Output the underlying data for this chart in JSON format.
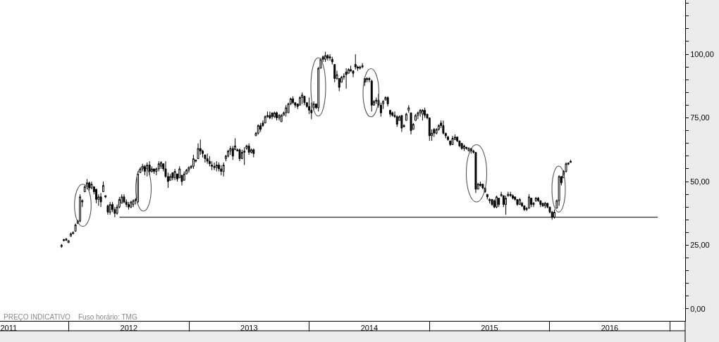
{
  "chart_data": {
    "type": "candlestick",
    "color": "#000000",
    "x": [
      2011.94,
      2011.959,
      2011.979,
      2011.998,
      2012.017,
      2012.036,
      2012.056,
      2012.075,
      2012.094,
      2012.113,
      2012.133,
      2012.152,
      2012.171,
      2012.19,
      2012.21,
      2012.229,
      2012.248,
      2012.267,
      2012.287,
      2012.306,
      2012.325,
      2012.344,
      2012.364,
      2012.383,
      2012.402,
      2012.421,
      2012.441,
      2012.46,
      2012.479,
      2012.498,
      2012.518,
      2012.537,
      2012.556,
      2012.575,
      2012.595,
      2012.614,
      2012.633,
      2012.652,
      2012.672,
      2012.691,
      2012.71,
      2012.729,
      2012.749,
      2012.768,
      2012.787,
      2012.806,
      2012.826,
      2012.845,
      2012.864,
      2012.883,
      2012.903,
      2012.922,
      2012.941,
      2012.96,
      2012.98,
      2012.999,
      2013.018,
      2013.037,
      2013.057,
      2013.076,
      2013.095,
      2013.114,
      2013.134,
      2013.153,
      2013.172,
      2013.191,
      2013.211,
      2013.23,
      2013.249,
      2013.268,
      2013.288,
      2013.307,
      2013.326,
      2013.345,
      2013.365,
      2013.384,
      2013.403,
      2013.422,
      2013.442,
      2013.461,
      2013.48,
      2013.499,
      2013.519,
      2013.538,
      2013.557,
      2013.576,
      2013.596,
      2013.615,
      2013.634,
      2013.653,
      2013.673,
      2013.692,
      2013.711,
      2013.73,
      2013.75,
      2013.769,
      2013.788,
      2013.807,
      2013.827,
      2013.846,
      2013.865,
      2013.884,
      2013.904,
      2013.923,
      2013.942,
      2013.961,
      2013.981,
      2014.0,
      2014.019,
      2014.038,
      2014.058,
      2014.077,
      2014.096,
      2014.115,
      2014.135,
      2014.154,
      2014.173,
      2014.192,
      2014.212,
      2014.231,
      2014.25,
      2014.269,
      2014.289,
      2014.308,
      2014.327,
      2014.346,
      2014.366,
      2014.385,
      2014.404,
      2014.423,
      2014.443,
      2014.462,
      2014.481,
      2014.5,
      2014.52,
      2014.539,
      2014.558,
      2014.577,
      2014.597,
      2014.616,
      2014.635,
      2014.654,
      2014.674,
      2014.693,
      2014.712,
      2014.731,
      2014.751,
      2014.77,
      2014.789,
      2014.808,
      2014.828,
      2014.847,
      2014.866,
      2014.885,
      2014.905,
      2014.924,
      2014.943,
      2014.962,
      2014.982,
      2015.001,
      2015.02,
      2015.039,
      2015.059,
      2015.078,
      2015.097,
      2015.116,
      2015.136,
      2015.155,
      2015.174,
      2015.193,
      2015.213,
      2015.232,
      2015.251,
      2015.27,
      2015.29,
      2015.309,
      2015.328,
      2015.347,
      2015.367,
      2015.386,
      2015.405,
      2015.424,
      2015.444,
      2015.463,
      2015.482,
      2015.501,
      2015.521,
      2015.54,
      2015.559,
      2015.578,
      2015.598,
      2015.617,
      2015.636,
      2015.655,
      2015.675,
      2015.694,
      2015.713,
      2015.732,
      2015.752,
      2015.771,
      2015.79,
      2015.809,
      2015.829,
      2015.848,
      2015.867,
      2015.886,
      2015.906,
      2015.925,
      2015.944,
      2015.963,
      2015.983,
      2016.002,
      2016.021,
      2016.04,
      2016.06,
      2016.079,
      2016.098,
      2016.117,
      2016.137,
      2016.156,
      2016.175
    ],
    "ohlc": [
      [
        24.5,
        25.5,
        24,
        25
      ],
      [
        26.8,
        27.5,
        26.5,
        27.2
      ],
      [
        26.9,
        27.8,
        26.8,
        27.5
      ],
      [
        26,
        27,
        26,
        26.8
      ],
      [
        28.5,
        30,
        28.5,
        29.5
      ],
      [
        29.5,
        30.5,
        29.5,
        30
      ],
      [
        30.5,
        33.5,
        30.5,
        33
      ],
      [
        33.5,
        35,
        33.5,
        34.5
      ],
      [
        34.5,
        45,
        34,
        44
      ],
      [
        42,
        43,
        40,
        42.5
      ],
      [
        46,
        48.5,
        46,
        48
      ],
      [
        48,
        51,
        47,
        49.5
      ],
      [
        49.5,
        50,
        46.5,
        47.5
      ],
      [
        47.5,
        50,
        47,
        49
      ],
      [
        48,
        48,
        45,
        46
      ],
      [
        47,
        47,
        41.5,
        43
      ],
      [
        43,
        45,
        40.5,
        44
      ],
      [
        44,
        45.5,
        40,
        42
      ],
      [
        46,
        50,
        46,
        48.5
      ],
      [
        44.5,
        44.5,
        43.5,
        44
      ],
      [
        40.5,
        41,
        37,
        38
      ],
      [
        38,
        42,
        37,
        41
      ],
      [
        41,
        42,
        38,
        39
      ],
      [
        39,
        40,
        36,
        37.5
      ],
      [
        37.5,
        41,
        37,
        40
      ],
      [
        40,
        44,
        39.5,
        43
      ],
      [
        41.5,
        45,
        41.5,
        44
      ],
      [
        44,
        45,
        41.5,
        42
      ],
      [
        42,
        43,
        40,
        41
      ],
      [
        41,
        42,
        39,
        40
      ],
      [
        40,
        42.5,
        39.5,
        42
      ],
      [
        41,
        43,
        40,
        42.5
      ],
      [
        42.5,
        43.5,
        41,
        43
      ],
      [
        42,
        54,
        41.5,
        53
      ],
      [
        53.5,
        55.5,
        53.5,
        55
      ],
      [
        55,
        57,
        54,
        56
      ],
      [
        56,
        56.5,
        52.5,
        54
      ],
      [
        55,
        57.5,
        52,
        56.5
      ],
      [
        56.5,
        58,
        52.5,
        54
      ],
      [
        54,
        56,
        53.5,
        55
      ],
      [
        55,
        55,
        53,
        54
      ],
      [
        54,
        55.5,
        52.5,
        55
      ],
      [
        55,
        58,
        54,
        57
      ],
      [
        56,
        58,
        55,
        57.5
      ],
      [
        57,
        57,
        54,
        55
      ],
      [
        55,
        58,
        51.5,
        52
      ],
      [
        52,
        53.5,
        47.5,
        50
      ],
      [
        50.5,
        53,
        50.5,
        52
      ],
      [
        53.5,
        53.5,
        50.5,
        51.5
      ],
      [
        51.5,
        55,
        50.5,
        54
      ],
      [
        53,
        53,
        50,
        51
      ],
      [
        51.5,
        56,
        51.5,
        55
      ],
      [
        52.5,
        52.5,
        48.5,
        50
      ],
      [
        50.5,
        54,
        50.5,
        53
      ],
      [
        53,
        55,
        53,
        54.5
      ],
      [
        54.5,
        56,
        53.5,
        55.5
      ],
      [
        55.5,
        56.5,
        55,
        56
      ],
      [
        56,
        60.5,
        55,
        59
      ],
      [
        58.5,
        58.5,
        57.5,
        58
      ],
      [
        59,
        65,
        59,
        63
      ],
      [
        63,
        66.5,
        60.5,
        62
      ],
      [
        62,
        62.5,
        59.5,
        61
      ],
      [
        60.5,
        60.5,
        57.5,
        59
      ],
      [
        59,
        61,
        57,
        58
      ],
      [
        58,
        60,
        56,
        57
      ],
      [
        56.5,
        58,
        54.5,
        56
      ],
      [
        56,
        57.5,
        54.5,
        55.5
      ],
      [
        55.5,
        58,
        54,
        56.5
      ],
      [
        56.5,
        57.5,
        54,
        55
      ],
      [
        55,
        56.5,
        52.5,
        54
      ],
      [
        54,
        57.5,
        52,
        56.5
      ],
      [
        59,
        60.5,
        58,
        60
      ],
      [
        60,
        62.5,
        59.5,
        62
      ],
      [
        62,
        64,
        60.5,
        63
      ],
      [
        63,
        64,
        58.5,
        60
      ],
      [
        62.5,
        67,
        62.5,
        64
      ],
      [
        62,
        63,
        62,
        62.5
      ],
      [
        62.5,
        63,
        58,
        59
      ],
      [
        59,
        62.5,
        59,
        61.5
      ],
      [
        61.5,
        63.5,
        56.5,
        62
      ],
      [
        63,
        64.5,
        62.5,
        64
      ],
      [
        64,
        65,
        60.5,
        61.5
      ],
      [
        61.5,
        63,
        61,
        62.5
      ],
      [
        62.5,
        63,
        59.5,
        61
      ],
      [
        68,
        69.5,
        68,
        69
      ],
      [
        69,
        72.5,
        68.5,
        72
      ],
      [
        72,
        73,
        69.5,
        70.5
      ],
      [
        73,
        74,
        71.5,
        72
      ],
      [
        73,
        76,
        73,
        75.5
      ],
      [
        75.5,
        77.5,
        75,
        76
      ],
      [
        76,
        77.5,
        74.5,
        75
      ],
      [
        77,
        77,
        74.5,
        75.5
      ],
      [
        75.5,
        77.5,
        75,
        77
      ],
      [
        77,
        77.5,
        74,
        75
      ],
      [
        75,
        76.5,
        74,
        76
      ],
      [
        73.5,
        76.5,
        73.5,
        76
      ],
      [
        76,
        77.5,
        76,
        77
      ],
      [
        77,
        80,
        75.5,
        79
      ],
      [
        77,
        81,
        77,
        80.5
      ],
      [
        80.5,
        83,
        80,
        82.5
      ],
      [
        82.5,
        83.5,
        80.5,
        81
      ],
      [
        81,
        81,
        79,
        80
      ],
      [
        80.5,
        80.5,
        78.5,
        79.5
      ],
      [
        80,
        83.5,
        80,
        83
      ],
      [
        83,
        85,
        80.5,
        84
      ],
      [
        83.5,
        83.5,
        80,
        81
      ],
      [
        81,
        81,
        79,
        79.5
      ],
      [
        79.5,
        83,
        76.5,
        78
      ],
      [
        78,
        81,
        74.5,
        77
      ],
      [
        79,
        81.5,
        78,
        80.5
      ],
      [
        80.5,
        80.5,
        78.5,
        79
      ],
      [
        79,
        95,
        77.5,
        94.5
      ],
      [
        94.5,
        98.5,
        94.5,
        98
      ],
      [
        99,
        99.5,
        97,
        98
      ],
      [
        98,
        101,
        97,
        99.5
      ],
      [
        99.5,
        100,
        97.5,
        98.5
      ],
      [
        98.5,
        100,
        97.5,
        99
      ],
      [
        98,
        99,
        96,
        97
      ],
      [
        96,
        96,
        89,
        90.5
      ],
      [
        90.5,
        93.5,
        90,
        92
      ],
      [
        90.5,
        90.5,
        85.5,
        87
      ],
      [
        89,
        91.5,
        89,
        91
      ],
      [
        91,
        92.5,
        90,
        91.5
      ],
      [
        93,
        94.5,
        86.5,
        92
      ],
      [
        92.5,
        94.5,
        92.5,
        94
      ],
      [
        94,
        95.5,
        93,
        93.5
      ],
      [
        93.5,
        93.5,
        91,
        92.5
      ],
      [
        96,
        100,
        94,
        95
      ],
      [
        95,
        95.5,
        93.5,
        94.5
      ],
      [
        94.5,
        95.5,
        94,
        95
      ],
      [
        95,
        96.5,
        94.5,
        95.5
      ],
      [
        90.5,
        90.5,
        87.5,
        89
      ],
      [
        90,
        91,
        89,
        90.5
      ],
      [
        90.5,
        91,
        89,
        90
      ],
      [
        89.5,
        90,
        77.5,
        80
      ],
      [
        80,
        82,
        80,
        81.5
      ],
      [
        81.5,
        83,
        80.5,
        82
      ],
      [
        82,
        84.5,
        79,
        80
      ],
      [
        80,
        81,
        75.5,
        77
      ],
      [
        80.5,
        82,
        78.5,
        81.5
      ],
      [
        82,
        83.5,
        82,
        83
      ],
      [
        83,
        83.5,
        79.5,
        80.5
      ],
      [
        78,
        78,
        75.5,
        76.5
      ],
      [
        77,
        77.5,
        75.5,
        76
      ],
      [
        76,
        77.5,
        75,
        75.5
      ],
      [
        75.5,
        76,
        71.5,
        72.5
      ],
      [
        74,
        76,
        74,
        75.5
      ],
      [
        76,
        76,
        69.5,
        71
      ],
      [
        71.5,
        72.5,
        71.5,
        72
      ],
      [
        74,
        77,
        74,
        76.5
      ],
      [
        78,
        80,
        77,
        79
      ],
      [
        77,
        77,
        68.5,
        70
      ],
      [
        70.5,
        73,
        70.5,
        72.5
      ],
      [
        74,
        76.5,
        74,
        76
      ],
      [
        76,
        77.5,
        74.5,
        77
      ],
      [
        77,
        78.5,
        75.5,
        78
      ],
      [
        76.5,
        78.5,
        74,
        78
      ],
      [
        78,
        79,
        75,
        76
      ],
      [
        76.5,
        76.5,
        74.5,
        75
      ],
      [
        75,
        75,
        66,
        68
      ],
      [
        68,
        70.5,
        66,
        69
      ],
      [
        70.5,
        71,
        67.5,
        69
      ],
      [
        69,
        71,
        68.5,
        70.5
      ],
      [
        70.5,
        72.5,
        70,
        72
      ],
      [
        73,
        74,
        71,
        72
      ],
      [
        72,
        74,
        68.5,
        69
      ],
      [
        69,
        69,
        67,
        68
      ],
      [
        67.5,
        68,
        66,
        66.5
      ],
      [
        66,
        66,
        64,
        64.5
      ],
      [
        64.5,
        68,
        64.5,
        67
      ],
      [
        66.5,
        68.5,
        66.5,
        67.5
      ],
      [
        67.5,
        67.5,
        65.5,
        66
      ],
      [
        66,
        66,
        63.5,
        64
      ],
      [
        65,
        65,
        62.5,
        63
      ],
      [
        63,
        64.5,
        62,
        64
      ],
      [
        63.5,
        63.5,
        62.5,
        63
      ],
      [
        62,
        63.5,
        62,
        63
      ],
      [
        63,
        63,
        61,
        62
      ],
      [
        62,
        62.5,
        61,
        61.5
      ],
      [
        61.5,
        61.5,
        45.5,
        47
      ],
      [
        47,
        49.5,
        47,
        49
      ],
      [
        49,
        50,
        48,
        48.5
      ],
      [
        49,
        49,
        47,
        47.5
      ],
      [
        47.5,
        47.5,
        45.5,
        46
      ],
      [
        45,
        45,
        43,
        44
      ],
      [
        42.5,
        43.5,
        41.5,
        43
      ],
      [
        43,
        43,
        40.5,
        41
      ],
      [
        42.5,
        43,
        39.5,
        40
      ],
      [
        40,
        44.5,
        39.5,
        44
      ],
      [
        43.5,
        43.5,
        40,
        41
      ],
      [
        44.5,
        46,
        44,
        45
      ],
      [
        44.5,
        44.5,
        40,
        41
      ],
      [
        41,
        44.5,
        37,
        43.5
      ],
      [
        44.5,
        46,
        44,
        45
      ],
      [
        45,
        46,
        44,
        44.5
      ],
      [
        44.5,
        45,
        43,
        43.5
      ],
      [
        44,
        44,
        42.5,
        43
      ],
      [
        43,
        43,
        40.5,
        41
      ],
      [
        41,
        43.5,
        41,
        43
      ],
      [
        41.5,
        42,
        40,
        40.5
      ],
      [
        40.5,
        40.5,
        38.5,
        39
      ],
      [
        39,
        40,
        38.5,
        39.5
      ],
      [
        39.5,
        45,
        39.5,
        44
      ],
      [
        43.5,
        43.5,
        40,
        41
      ],
      [
        41,
        42,
        40,
        41.5
      ],
      [
        42.5,
        44,
        42,
        43.5
      ],
      [
        43.5,
        44,
        42,
        42.5
      ],
      [
        42.5,
        42.5,
        40,
        41
      ],
      [
        41.5,
        41.5,
        40,
        40.5
      ],
      [
        40.5,
        42,
        39.5,
        41.5
      ],
      [
        41.5,
        41.5,
        39.5,
        40
      ],
      [
        40,
        40,
        37.5,
        38
      ],
      [
        38,
        38.5,
        35,
        36
      ],
      [
        36,
        39,
        35.5,
        38
      ],
      [
        39.5,
        43,
        39.5,
        42.5
      ],
      [
        42.5,
        52.5,
        40.5,
        52
      ],
      [
        52,
        52,
        48.5,
        49.5
      ],
      [
        51.5,
        54.5,
        51.5,
        54
      ],
      [
        54,
        57.5,
        53.5,
        57
      ],
      [
        56.8,
        57.5,
        56.5,
        57.3
      ],
      [
        57.5,
        58.5,
        57.5,
        58
      ]
    ],
    "series": [
      {
        "type": "line",
        "color": "#000000",
        "x": [
          2012.421,
          2016.9
        ],
        "values": [
          36,
          36
        ]
      }
    ],
    "xlim": [
      2011.428,
      2017.128
    ],
    "xticks": [
      {
        "value": 2011.5,
        "label": "2011"
      },
      {
        "value": 2012,
        "label": null
      },
      {
        "value": 2012.5,
        "label": "2012"
      },
      {
        "value": 2013,
        "label": null
      },
      {
        "value": 2013.5,
        "label": "2013"
      },
      {
        "value": 2014,
        "label": null
      },
      {
        "value": 2014.5,
        "label": "2014"
      },
      {
        "value": 2015,
        "label": null
      },
      {
        "value": 2015.5,
        "label": "2015"
      },
      {
        "value": 2016,
        "label": null
      },
      {
        "value": 2016.5,
        "label": "2016"
      },
      {
        "value": 2017,
        "label": null
      }
    ],
    "ylim": [
      -4.7,
      121.3
    ],
    "yticks": [
      {
        "value": 0,
        "label": "0,00"
      },
      {
        "value": 5,
        "label": null
      },
      {
        "value": 10,
        "label": null
      },
      {
        "value": 15,
        "label": null
      },
      {
        "value": 20,
        "label": null
      },
      {
        "value": 25,
        "label": "25,00"
      },
      {
        "value": 30,
        "label": null
      },
      {
        "value": 35,
        "label": null
      },
      {
        "value": 40,
        "label": null
      },
      {
        "value": 45,
        "label": null
      },
      {
        "value": 50,
        "label": "50,00"
      },
      {
        "value": 55,
        "label": null
      },
      {
        "value": 60,
        "label": null
      },
      {
        "value": 65,
        "label": null
      },
      {
        "value": 70,
        "label": null
      },
      {
        "value": 75,
        "label": "75,00"
      },
      {
        "value": 80,
        "label": null
      },
      {
        "value": 85,
        "label": null
      },
      {
        "value": 90,
        "label": null
      },
      {
        "value": 95,
        "label": null
      },
      {
        "value": 100,
        "label": "100,00"
      },
      {
        "value": 105,
        "label": null
      },
      {
        "value": 110,
        "label": null
      },
      {
        "value": 115,
        "label": null
      },
      {
        "value": 120,
        "label": null
      }
    ],
    "annotations": [
      "PREÇO INDICATIVO",
      "Fuso horário: TMG"
    ]
  }
}
